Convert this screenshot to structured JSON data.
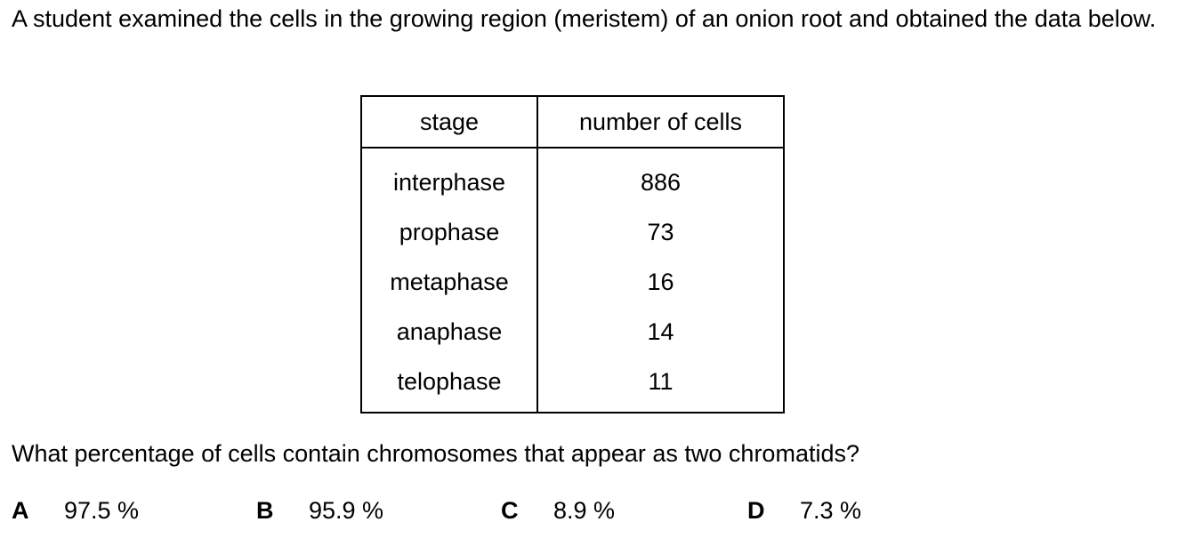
{
  "intro": "A student examined the cells in the growing region (meristem) of an onion root and obtained the data below.",
  "table": {
    "headers": [
      "stage",
      "number of cells"
    ],
    "rows": [
      {
        "stage": "interphase",
        "count": "886"
      },
      {
        "stage": "prophase",
        "count": "73"
      },
      {
        "stage": "metaphase",
        "count": "16"
      },
      {
        "stage": "anaphase",
        "count": "14"
      },
      {
        "stage": "telophase",
        "count": "11"
      }
    ]
  },
  "question": "What percentage of cells contain chromosomes that appear as two chromatids?",
  "options": [
    {
      "letter": "A",
      "text": "97.5 %"
    },
    {
      "letter": "B",
      "text": "95.9 %"
    },
    {
      "letter": "C",
      "text": "8.9 %"
    },
    {
      "letter": "D",
      "text": "7.3 %"
    }
  ]
}
